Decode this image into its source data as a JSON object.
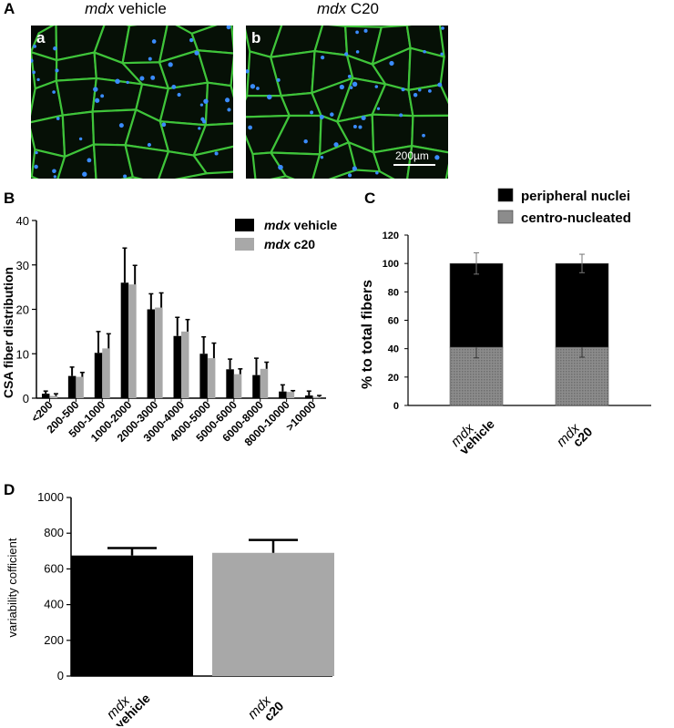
{
  "panel_A": {
    "letter": "A",
    "left_title_italic": "mdx",
    "left_title_rest": " vehicle",
    "right_title_italic": "mdx",
    "right_title_rest": " C20",
    "left_sublabel": "a",
    "right_sublabel": "b",
    "scale_bar_label": "200µm"
  },
  "panel_B": {
    "letter": "B",
    "ylabel": "CSA fiber distribution",
    "legend": [
      {
        "italic": "mdx",
        "rest": " vehicle",
        "color": "#000000"
      },
      {
        "italic": "mdx",
        "rest": " c20",
        "color": "#a8a8a8"
      }
    ]
  },
  "panel_C": {
    "letter": "C",
    "ylabel": "% to total fibers",
    "legend": [
      {
        "label": "peripheral nuclei",
        "color": "#000000"
      },
      {
        "label": "centro-nucleated",
        "color": "#8c8c8c"
      }
    ],
    "categories": [
      {
        "italic": "mdx",
        "rest": "vehicle"
      },
      {
        "italic": "mdx",
        "rest": "c20"
      }
    ]
  },
  "panel_D": {
    "letter": "D",
    "ylabel": "variability cofficient",
    "categories": [
      {
        "italic": "mdx",
        "rest": "vehicle"
      },
      {
        "italic": "mdx",
        "rest": "c20"
      }
    ]
  },
  "chart_data": [
    {
      "id": "B",
      "type": "bar",
      "categories": [
        "<200",
        "200-500",
        "500-1000",
        "1000-2000",
        "2000-3000",
        "3000-4000",
        "4000-5000",
        "5000-6000",
        "6000-8000",
        "8000-10000",
        ">10000"
      ],
      "series": [
        {
          "name": "mdx vehicle",
          "values": [
            1,
            5,
            10.2,
            26,
            20,
            14,
            10,
            6.5,
            5.2,
            1.5,
            0.6
          ],
          "errors": [
            0.6,
            2,
            4.8,
            7.8,
            3.5,
            4.2,
            3.8,
            2.3,
            3.8,
            1.5,
            1
          ],
          "color": "#000000"
        },
        {
          "name": "mdx c20",
          "values": [
            0.5,
            4.8,
            11.2,
            25.6,
            20.4,
            15,
            9,
            5.4,
            6.6,
            1.4,
            0.3
          ],
          "errors": [
            0.5,
            1,
            3.3,
            4.3,
            3.3,
            2.7,
            3.4,
            1.2,
            1.5,
            0.3,
            0.3
          ],
          "color": "#a8a8a8"
        }
      ],
      "ylim": [
        0,
        40
      ],
      "yticks": [
        0,
        10,
        20,
        30,
        40
      ]
    },
    {
      "id": "C",
      "type": "bar",
      "stacked": true,
      "categories": [
        "mdx vehicle",
        "mdx c20"
      ],
      "series": [
        {
          "name": "centro-nucleated",
          "values": [
            41,
            41
          ],
          "errors": [
            7.5,
            7
          ],
          "color": "#8c8c8c"
        },
        {
          "name": "peripheral nuclei",
          "values": [
            59,
            59
          ],
          "errors": [
            7.5,
            6.5
          ],
          "color": "#000000"
        }
      ],
      "ylim": [
        0,
        120
      ],
      "yticks": [
        0,
        20,
        40,
        60,
        80,
        100,
        120
      ]
    },
    {
      "id": "D",
      "type": "bar",
      "categories": [
        "mdx vehicle",
        "mdx c20"
      ],
      "values": [
        675,
        690
      ],
      "errors": [
        42,
        72
      ],
      "colors": [
        "#000000",
        "#a8a8a8"
      ],
      "ylim": [
        0,
        1000
      ],
      "yticks": [
        0,
        200,
        400,
        600,
        800,
        1000
      ]
    }
  ]
}
